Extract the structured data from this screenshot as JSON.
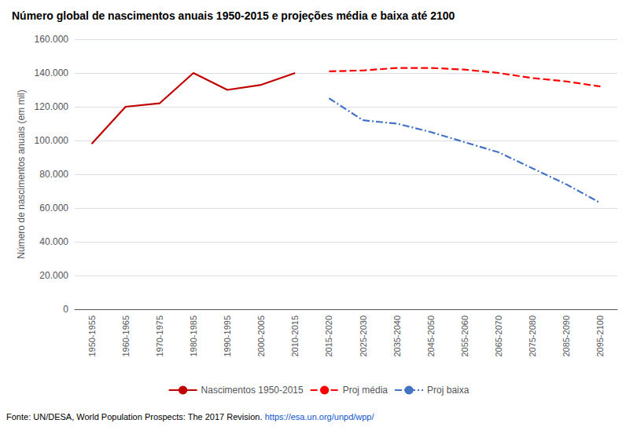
{
  "chart_data": {
    "type": "line",
    "title": "Número global de nascimentos anuais 1950-2015 e projeções média e baixa até 2100",
    "ylabel": "Número de nascimentos anuais (em mil)",
    "annotations": [
      "Fonte: UN/DESA, World Population Prospects: The 2017 Revision.",
      "https://esa.un.org/unpd/wpp/"
    ],
    "categories": [
      "1950-1955",
      "1960-1965",
      "1970-1975",
      "1980-1985",
      "1990-1995",
      "2000-2005",
      "2010-2015",
      "2015-2020",
      "2025-2030",
      "2035-2040",
      "2045-2050",
      "2055-2060",
      "2065-2070",
      "2075-2080",
      "2085-2090",
      "2095-2100"
    ],
    "series": [
      {
        "name": "Nascimentos 1950-2015",
        "color": "#C00000",
        "line_style": "solid",
        "values": [
          98000,
          120000,
          122000,
          140000,
          130000,
          133000,
          140000,
          null,
          null,
          null,
          null,
          null,
          null,
          null,
          null,
          null
        ]
      },
      {
        "name": "Proj média",
        "color": "#FF0000",
        "line_style": "dashed",
        "values": [
          null,
          null,
          null,
          null,
          null,
          null,
          null,
          141000,
          141500,
          143000,
          143000,
          142000,
          140000,
          137000,
          135000,
          132000
        ]
      },
      {
        "name": "Proj baixa",
        "color": "#4472C4",
        "line_style": "dashdot",
        "values": [
          null,
          null,
          null,
          null,
          null,
          null,
          null,
          125000,
          112000,
          110000,
          105000,
          99000,
          93000,
          83500,
          74000,
          63000
        ]
      }
    ],
    "ylim": [
      0,
      160000
    ],
    "yticks": [
      0,
      {
        "value": 20000,
        "label": "20.000"
      },
      {
        "value": 40000,
        "label": "40.000"
      },
      {
        "value": 60000,
        "label": "60.000"
      },
      {
        "value": 80000,
        "label": "80.000"
      },
      {
        "value": 100000,
        "label": "100.000"
      },
      {
        "value": 120000,
        "label": "120.000"
      },
      {
        "value": 140000,
        "label": "140.000"
      },
      {
        "value": 160000,
        "label": "160.000"
      }
    ],
    "grid": true,
    "legend": "bottom"
  }
}
